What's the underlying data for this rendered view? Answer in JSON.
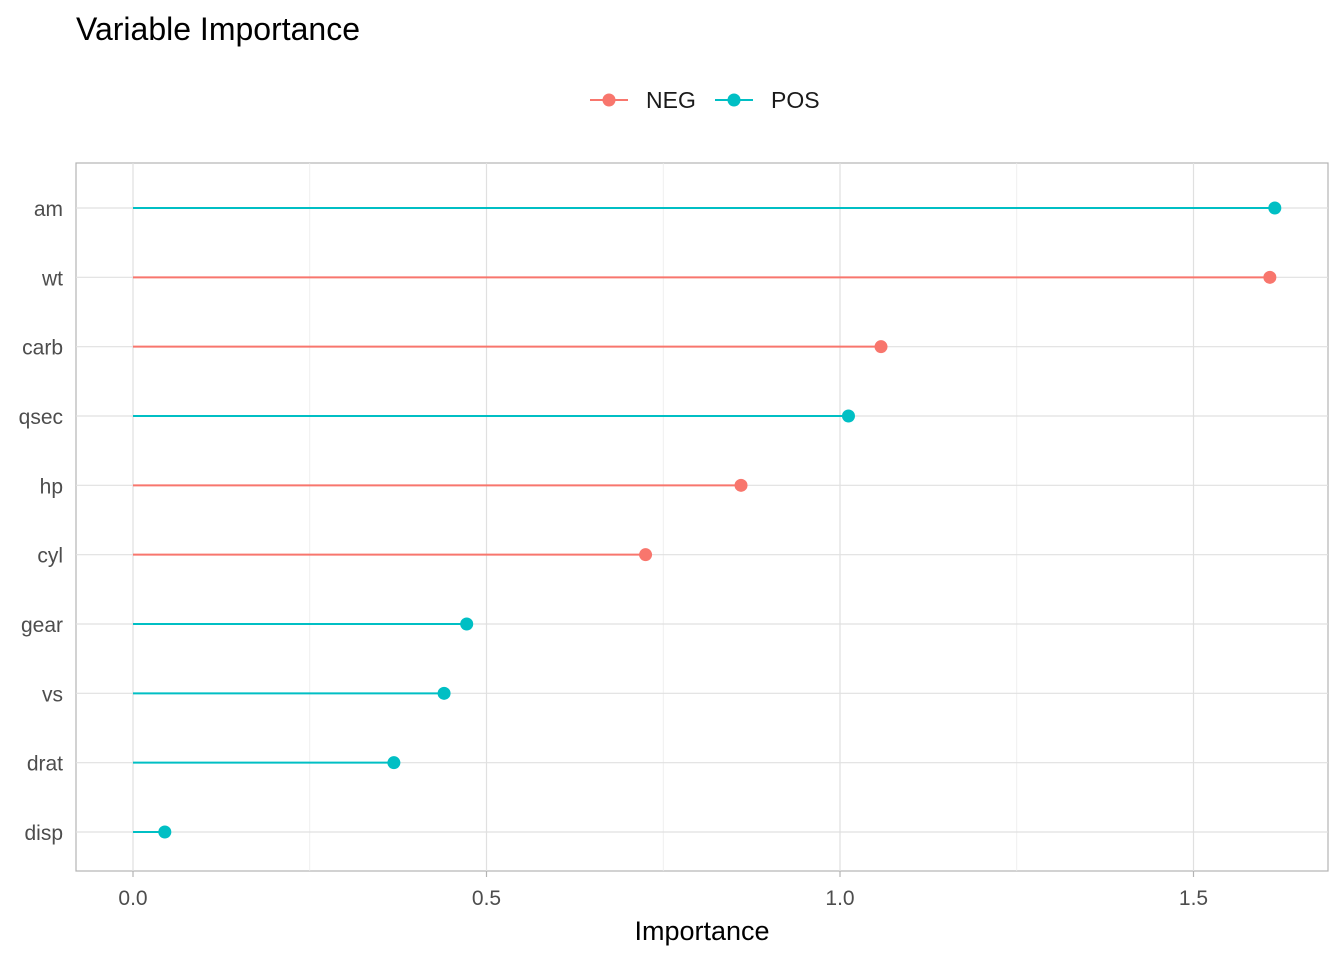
{
  "chart_data": {
    "type": "lollipop",
    "title": "Variable Importance",
    "xlabel": "Importance",
    "ylabel": "",
    "xlim": [
      -0.08,
      1.7
    ],
    "x_ticks": [
      0.0,
      0.5,
      1.0,
      1.5
    ],
    "x_tick_labels": [
      "0.0",
      "0.5",
      "1.0",
      "1.5"
    ],
    "grid": true,
    "legend": {
      "placement": "top",
      "entries": [
        {
          "label": "NEG",
          "color": "#F8766D"
        },
        {
          "label": "POS",
          "color": "#00BFC4"
        }
      ]
    },
    "categories": [
      "am",
      "wt",
      "carb",
      "qsec",
      "hp",
      "cyl",
      "gear",
      "vs",
      "drat",
      "disp"
    ],
    "points": [
      {
        "variable": "am",
        "importance": 1.615,
        "sign": "POS"
      },
      {
        "variable": "wt",
        "importance": 1.608,
        "sign": "NEG"
      },
      {
        "variable": "carb",
        "importance": 1.058,
        "sign": "NEG"
      },
      {
        "variable": "qsec",
        "importance": 1.012,
        "sign": "POS"
      },
      {
        "variable": "hp",
        "importance": 0.86,
        "sign": "NEG"
      },
      {
        "variable": "cyl",
        "importance": 0.725,
        "sign": "NEG"
      },
      {
        "variable": "gear",
        "importance": 0.472,
        "sign": "POS"
      },
      {
        "variable": "vs",
        "importance": 0.44,
        "sign": "POS"
      },
      {
        "variable": "drat",
        "importance": 0.369,
        "sign": "POS"
      },
      {
        "variable": "disp",
        "importance": 0.045,
        "sign": "POS"
      }
    ]
  }
}
